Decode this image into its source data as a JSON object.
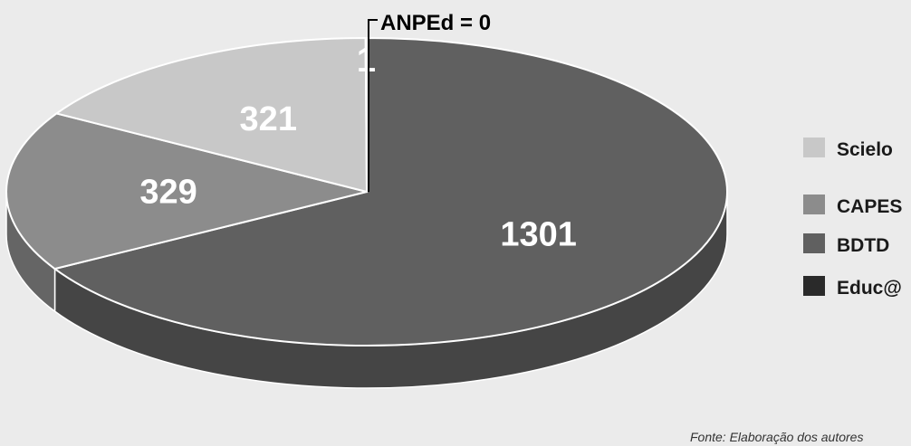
{
  "chart_data": {
    "type": "pie",
    "categories": [
      "BDTD",
      "CAPES",
      "Scielo",
      "Educ@",
      "ANPEd"
    ],
    "values": [
      1301,
      329,
      321,
      1,
      0
    ],
    "colors": {
      "BDTD": "#606060",
      "CAPES": "#8c8c8c",
      "Scielo": "#c8c8c8",
      "Educ@": "#2a2a2a",
      "ANPEd": "#000000"
    },
    "legend_placement": "right",
    "legend": [
      "Scielo",
      "CAPES",
      "BDTD",
      "Educ@"
    ],
    "annotation": "ANPEd = 0",
    "source_text": "Fonte: Elaboração dos autores"
  }
}
